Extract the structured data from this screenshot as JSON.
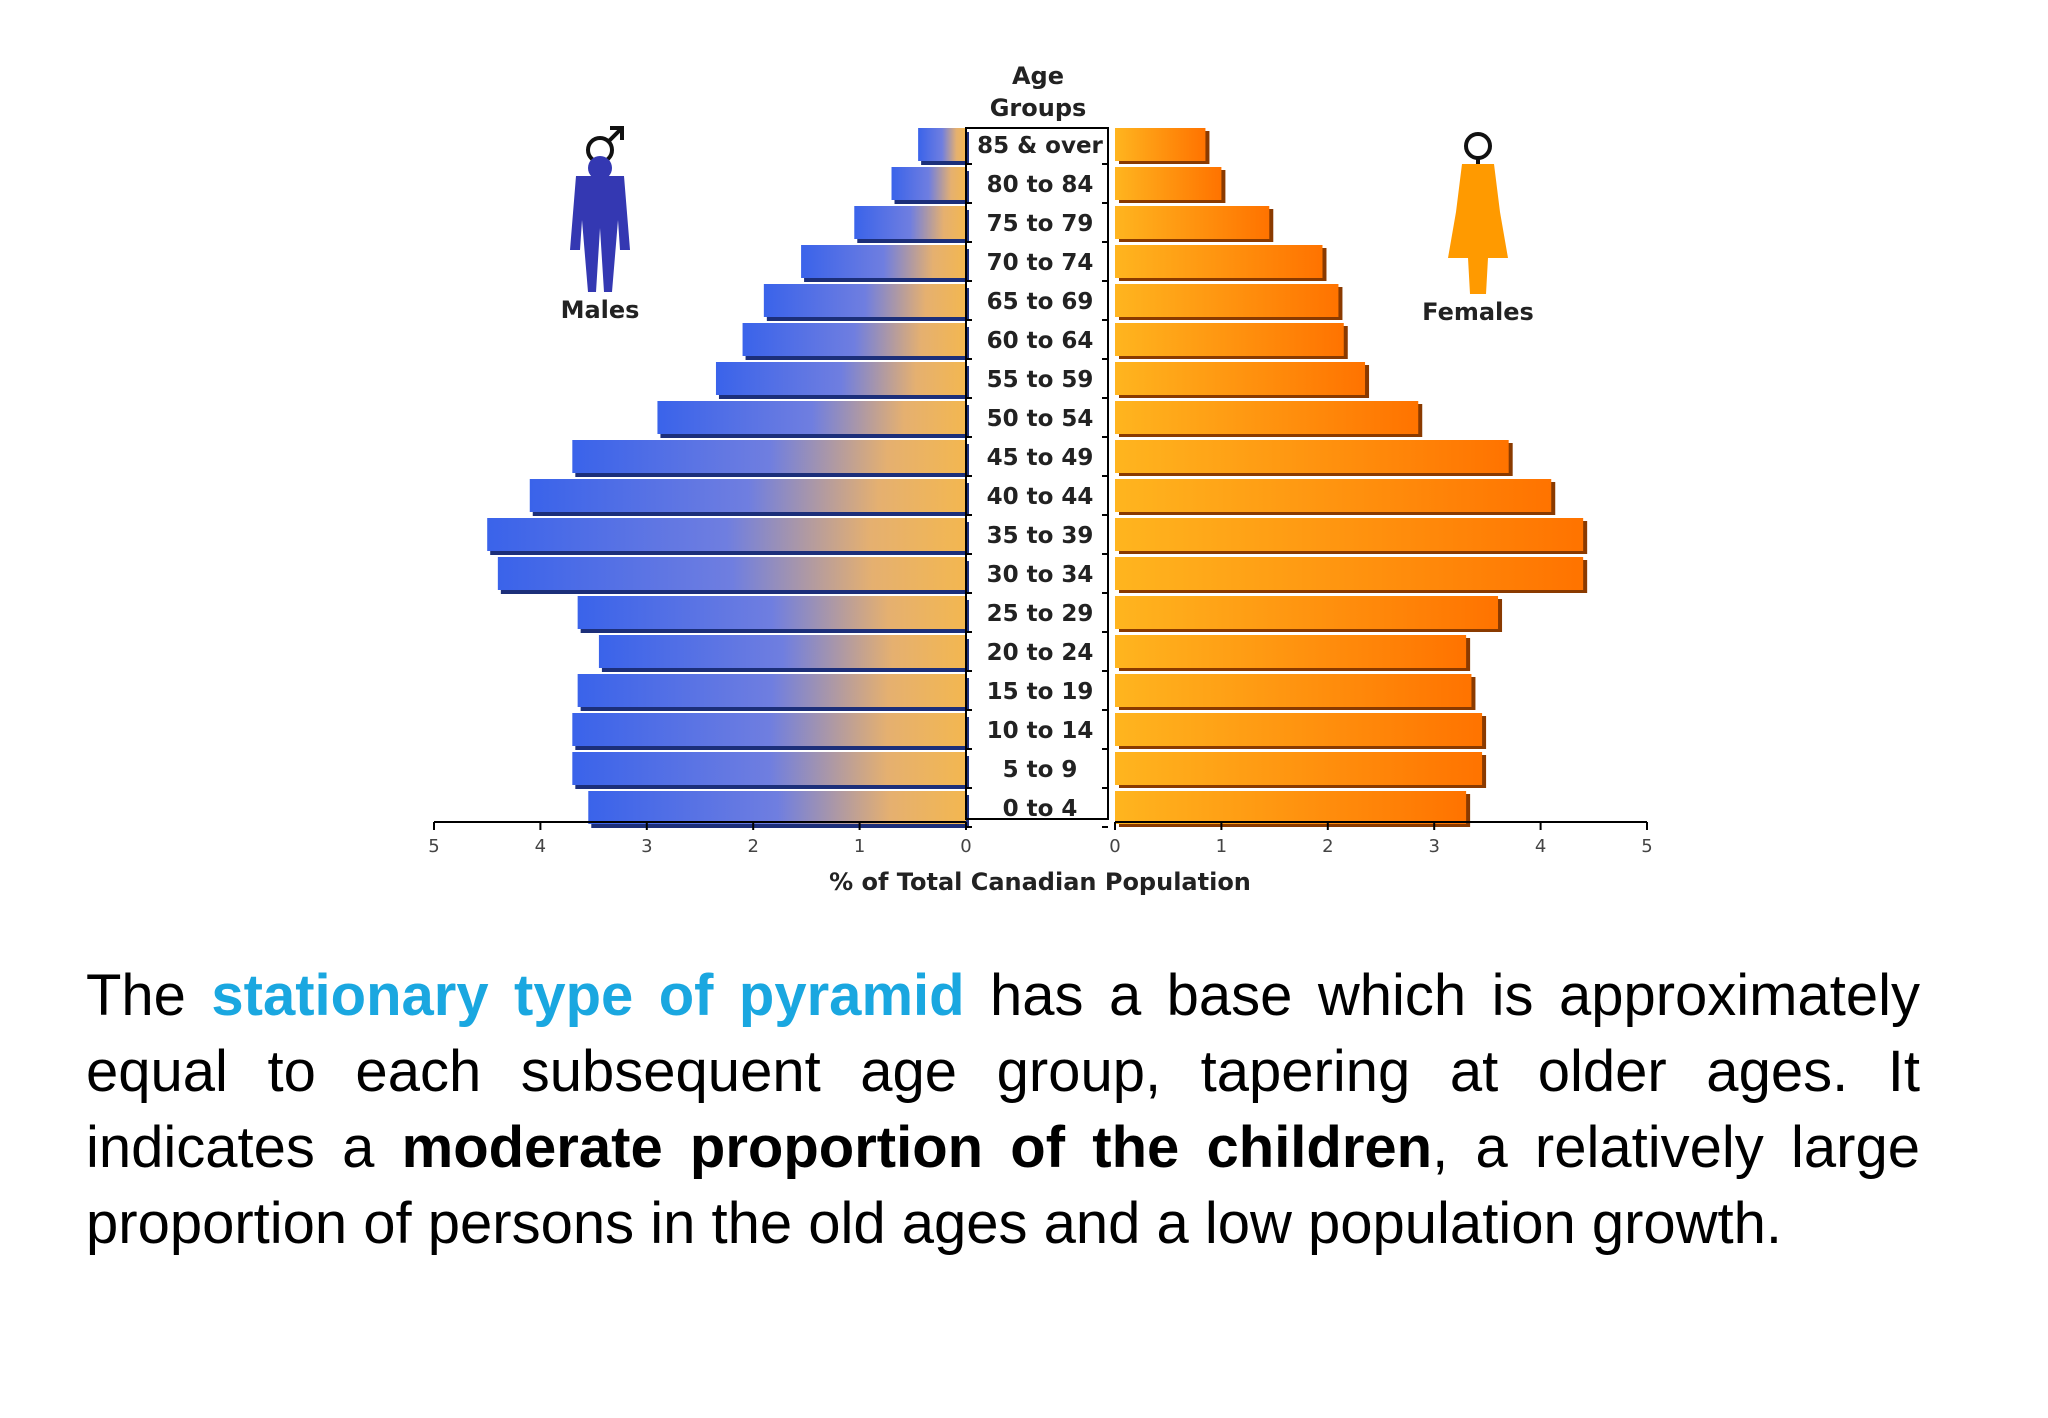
{
  "chart_data": {
    "type": "bar",
    "orientation": "population-pyramid",
    "categories": [
      "85 & over",
      "80 to 84",
      "75 to 79",
      "70 to 74",
      "65 to 69",
      "60 to 64",
      "55 to 59",
      "50 to 54",
      "45 to 49",
      "40 to 44",
      "35 to 39",
      "30 to 34",
      "25 to 29",
      "20 to 24",
      "15 to 19",
      "10 to 14",
      "5 to 9",
      "0 to 4"
    ],
    "series": [
      {
        "name": "Males",
        "values": [
          0.45,
          0.7,
          1.05,
          1.55,
          1.9,
          2.1,
          2.35,
          2.9,
          3.7,
          4.1,
          4.5,
          4.4,
          3.65,
          3.45,
          3.65,
          3.7,
          3.7,
          3.55
        ]
      },
      {
        "name": "Females",
        "values": [
          0.85,
          1.0,
          1.45,
          1.95,
          2.1,
          2.15,
          2.35,
          2.85,
          3.7,
          4.1,
          4.4,
          4.4,
          3.6,
          3.3,
          3.35,
          3.45,
          3.45,
          3.3
        ]
      }
    ],
    "category_header": "Age Groups",
    "xlabel": "% of Total Canadian Population",
    "xlim": [
      0,
      5
    ],
    "ticks": [
      "0",
      "1",
      "2",
      "3",
      "4",
      "5"
    ],
    "legend": {
      "males": "Males",
      "females": "Females"
    },
    "colors": {
      "males": "#3a63ea",
      "males_light": "#f0b658",
      "females": "#ff7a00",
      "females_light": "#ffb51f",
      "male_icon": "#3438b2",
      "female_icon": "#ff9a00"
    }
  },
  "paragraph": {
    "s1": "The ",
    "s2": "stationary type of pyramid",
    "s3": " has a base which is approximately equal to each subsequent age group, tapering at older ages. It indicates a ",
    "s4": "moderate proportion of the children",
    "s5": ", a relatively large proportion of persons in the old ages and a low population growth."
  }
}
